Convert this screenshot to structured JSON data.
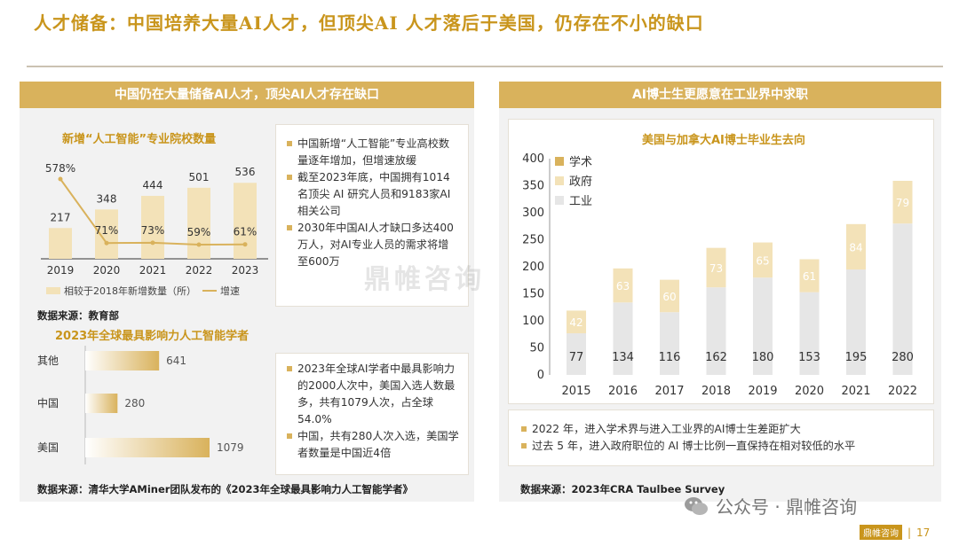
{
  "title": "人才储备：中国培养大量AI人才，但顶尖AI 人才落后于美国，仍存在不小的缺口",
  "left_panel": {
    "header": "中国仍在大量储备AI人才，顶尖AI人才存在缺口",
    "chart1_title": "新增“人工智能”专业院校数量",
    "chart1_legend": [
      "相较于2018年新增数量（所）",
      "增速"
    ],
    "bullets1": [
      "中国新增“人工智能”专业高校数量逐年增加，但增速放缓",
      "截至2023年底，中国拥有1014名顶尖 AI 研究人员和9183家AI 相关公司",
      "2030年中国AI人才缺口多达400万人，对AI专业人员的需求将增至600万"
    ],
    "source1": "数据来源：教育部",
    "chart2_title": "2023年全球最具影响力人工智能学者",
    "bullets2": [
      "2023年全球AI学者中最具影响力的2000人次中，美国入选人数最多，共有1079人次，占全球54.0%",
      "中国，共有280人次入选，美国学者数量是中国近4倍"
    ],
    "source2": "数据来源：清华大学AMiner团队发布的《2023年全球最具影响力人工智能学者》"
  },
  "right_panel": {
    "header": "AI博士生更愿意在工业界中求职",
    "chart3_title": "美国与加拿大AI博士毕业生去向",
    "bullets": [
      "2022 年，进入学术界与进入工业界的AI博士生差距扩大",
      "过去 5 年，进入政府职位的 AI 博士比例一直保持在相对较低的水平"
    ],
    "source": "数据来源：2023年CRA Taulbee Survey"
  },
  "watermark": "鼎帷咨询",
  "footer": {
    "wechat": "公众号 · 鼎帷咨询",
    "logo_text": "鼎帷咨询",
    "page": "17"
  },
  "colors": {
    "gold": "#d9b25c",
    "light_gold": "#f3e2b8",
    "title_gold": "#c9951c",
    "grey_bar": "#e6e6e6"
  },
  "chart_data": [
    {
      "type": "bar",
      "title": "新增“人工智能”专业院校数量",
      "categories": [
        "2019",
        "2020",
        "2021",
        "2022",
        "2023"
      ],
      "series": [
        {
          "name": "相较于2018年新增数量（所）",
          "type": "bar",
          "values": [
            217,
            348,
            444,
            501,
            536
          ]
        },
        {
          "name": "增速",
          "type": "line",
          "values": [
            578,
            71,
            73,
            59,
            61
          ],
          "labels": [
            "578%",
            "71%",
            "73%",
            "59%",
            "61%"
          ]
        }
      ],
      "legend": "bottom"
    },
    {
      "type": "bar",
      "orientation": "horizontal",
      "title": "2023年全球最具影响力人工智能学者",
      "categories": [
        "其他",
        "中国",
        "美国"
      ],
      "values": [
        641,
        280,
        1079
      ]
    },
    {
      "type": "bar",
      "stacked": true,
      "title": "美国与加拿大AI博士毕业生去向",
      "categories": [
        "2015",
        "2016",
        "2017",
        "2018",
        "2019",
        "2020",
        "2021",
        "2022"
      ],
      "series": [
        {
          "name": "工业",
          "values": [
            77,
            134,
            116,
            162,
            180,
            153,
            195,
            280
          ]
        },
        {
          "name": "学术",
          "values": [
            42,
            63,
            60,
            73,
            65,
            61,
            84,
            79
          ]
        },
        {
          "name": "政府",
          "values": [
            0,
            0,
            0,
            0,
            0,
            0,
            0,
            0
          ]
        }
      ],
      "y_ticks": [
        0,
        50,
        100,
        150,
        200,
        250,
        300,
        350,
        400
      ],
      "ylim": [
        0,
        400
      ],
      "legend": "top-left"
    }
  ]
}
